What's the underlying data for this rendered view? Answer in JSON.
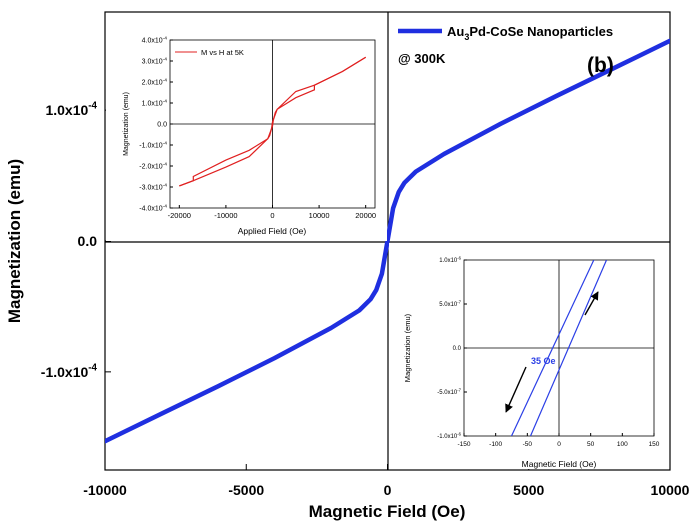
{
  "colors": {
    "main_series": "#1f2fe0",
    "inset_series": "#e02020",
    "zoom_series": "#2b3fe6",
    "axis": "#000000"
  },
  "chart_data": [
    {
      "type": "line",
      "xlabel": "Magnetic Field (Oe)",
      "ylabel": "Magnetization (emu)",
      "xlim": [
        -10000,
        10000
      ],
      "ylim": [
        -0.000175,
        0.000175
      ],
      "x_ticks": [
        -10000,
        -5000,
        0,
        5000,
        10000
      ],
      "x_tick_labels": [
        "-10000",
        "-5000",
        "0",
        "5000",
        "10000"
      ],
      "y_ticks": [
        -0.0001,
        0,
        0.0001
      ],
      "y_tick_labels": [
        "-1.0x10^-4",
        "0.0",
        "1.0x10^-4"
      ],
      "legend": {
        "label": "Au3Pd-CoSe Nanoparticles",
        "label_parts": [
          "Au",
          "3",
          "Pd-CoSe Nanoparticles"
        ],
        "placement": "top-right"
      },
      "annotations": [
        "@ 300K",
        "(b)"
      ],
      "series": [
        {
          "name": "Au3Pd-CoSe Nanoparticles",
          "x": [
            -10000,
            -8000,
            -6000,
            -4000,
            -2000,
            -1000,
            -600,
            -400,
            -200,
            0,
            200,
            400,
            600,
            1000,
            2000,
            4000,
            6000,
            8000,
            10000
          ],
          "y": [
            -0.000153,
            -0.000132,
            -0.000111,
            -8.95e-05,
            -6.65e-05,
            -5.3e-05,
            -4.45e-05,
            -3.75e-05,
            -2.5e-05,
            0,
            2.5e-05,
            3.75e-05,
            4.45e-05,
            5.3e-05,
            6.65e-05,
            8.95e-05,
            0.000111,
            0.000132,
            0.000153
          ]
        }
      ]
    },
    {
      "type": "line",
      "xlabel": "Applied Field (Oe)",
      "ylabel": "Magnetization (emu)",
      "xlim": [
        -22000,
        22000
      ],
      "ylim": [
        -0.0004,
        0.0004
      ],
      "x_ticks": [
        -20000,
        -10000,
        0,
        10000,
        20000
      ],
      "x_tick_labels": [
        "-20000",
        "-10000",
        "0",
        "10000",
        "20000"
      ],
      "y_ticks": [
        -0.0004,
        -0.0003,
        -0.0002,
        -0.0001,
        0,
        0.0001,
        0.0002,
        0.0003,
        0.0004
      ],
      "y_tick_labels": [
        "-4.0x10^-4",
        "-3.0x10^-4",
        "-2.0x10^-4",
        "-1.0x10^-4",
        "0.0",
        "1.0x10^-4",
        "2.0x10^-4",
        "3.0x10^-4",
        "4.0x10^-4"
      ],
      "legend": {
        "label": "M vs H at 5K",
        "placement": "top-left"
      },
      "series": [
        {
          "name": "M vs H at 5K",
          "branches": [
            {
              "x": [
                -20000,
                -17000,
                -10000,
                -5000,
                -1000,
                0,
                200,
                600,
                1000,
                5000,
                9000,
                9000,
                15000,
                20000
              ],
              "y": [
                -0.000295,
                -0.00027,
                -0.000205,
                -0.000155,
                -7e-05,
                -1e-05,
                2e-05,
                5.5e-05,
                7e-05,
                0.000125,
                0.000163,
                0.000185,
                0.00025,
                0.000318
              ]
            },
            {
              "x": [
                20000,
                15000,
                9000,
                5000,
                1000,
                0,
                -200,
                -600,
                -1000,
                -5000,
                -10000,
                -17000,
                -17000,
                -20000
              ],
              "y": [
                0.000318,
                0.00025,
                0.000185,
                0.000155,
                7e-05,
                1e-05,
                -2e-05,
                -5.5e-05,
                -7e-05,
                -0.000125,
                -0.000172,
                -0.00025,
                -0.00027,
                -0.000295
              ]
            }
          ]
        }
      ]
    },
    {
      "type": "line",
      "xlabel": "Magnetic Field (Oe)",
      "ylabel": "Magnetization (emu)",
      "xlim": [
        -150,
        150
      ],
      "ylim": [
        -1e-06,
        1e-06
      ],
      "x_ticks": [
        -150,
        -100,
        -50,
        0,
        50,
        100,
        150
      ],
      "x_tick_labels": [
        "-150",
        "-100",
        "-50",
        "0",
        "50",
        "100",
        "150"
      ],
      "y_ticks": [
        -1e-06,
        -5e-07,
        0,
        5e-07,
        1e-06
      ],
      "y_tick_labels": [
        "-1.0x10^-6",
        "-5.0x10^-7",
        "0.0",
        "5.0x10^-7",
        "1.0x10^-6"
      ],
      "annotations": [
        "35 Oe"
      ],
      "series": [
        {
          "name": "",
          "branches": [
            {
              "x": [
                -75,
                55
              ],
              "y": [
                -1e-06,
                1e-06
              ]
            },
            {
              "x": [
                -45,
                75
              ],
              "y": [
                -1e-06,
                1e-06
              ]
            }
          ]
        }
      ]
    }
  ]
}
